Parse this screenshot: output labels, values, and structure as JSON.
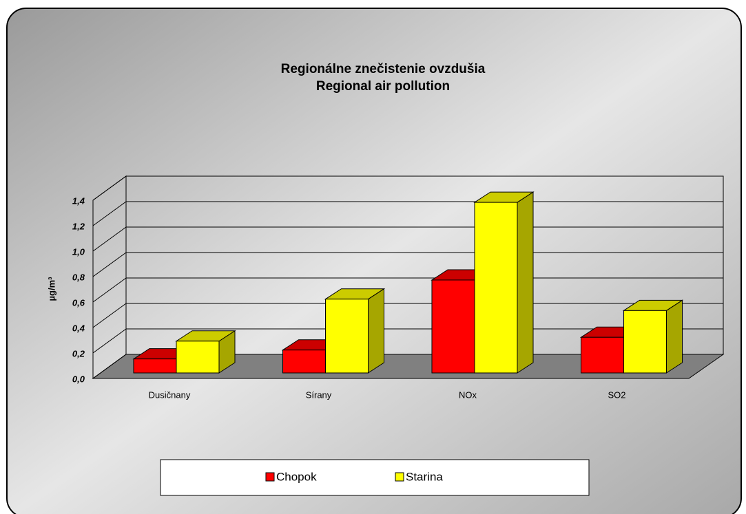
{
  "chart_data": {
    "type": "bar3d",
    "title": "Regionálne znečistenie ovzdušia",
    "subtitle": "Regional air pollution",
    "y_label": "µg/m³",
    "categories": [
      "Dusičnany",
      "Sírany",
      "NOx",
      "SO2"
    ],
    "series": [
      {
        "name": "Chopok",
        "color": "#ff0000",
        "values": [
          0.11,
          0.18,
          0.73,
          0.28
        ]
      },
      {
        "name": "Starina",
        "color": "#ffff00",
        "values": [
          0.25,
          0.58,
          1.34,
          0.49
        ]
      }
    ],
    "ylim": [
      0,
      1.4
    ],
    "yticks": [
      {
        "value": 0,
        "label": "0,0"
      },
      {
        "value": 0.2,
        "label": "0,2"
      },
      {
        "value": 0.4,
        "label": "0,4"
      },
      {
        "value": 0.6,
        "label": "0,6"
      },
      {
        "value": 0.8,
        "label": "0,8"
      },
      {
        "value": 1.0,
        "label": "1,0"
      },
      {
        "value": 1.2,
        "label": "1,2"
      },
      {
        "value": 1.4,
        "label": "1,4"
      }
    ],
    "grid": true,
    "legend": "bottom"
  }
}
